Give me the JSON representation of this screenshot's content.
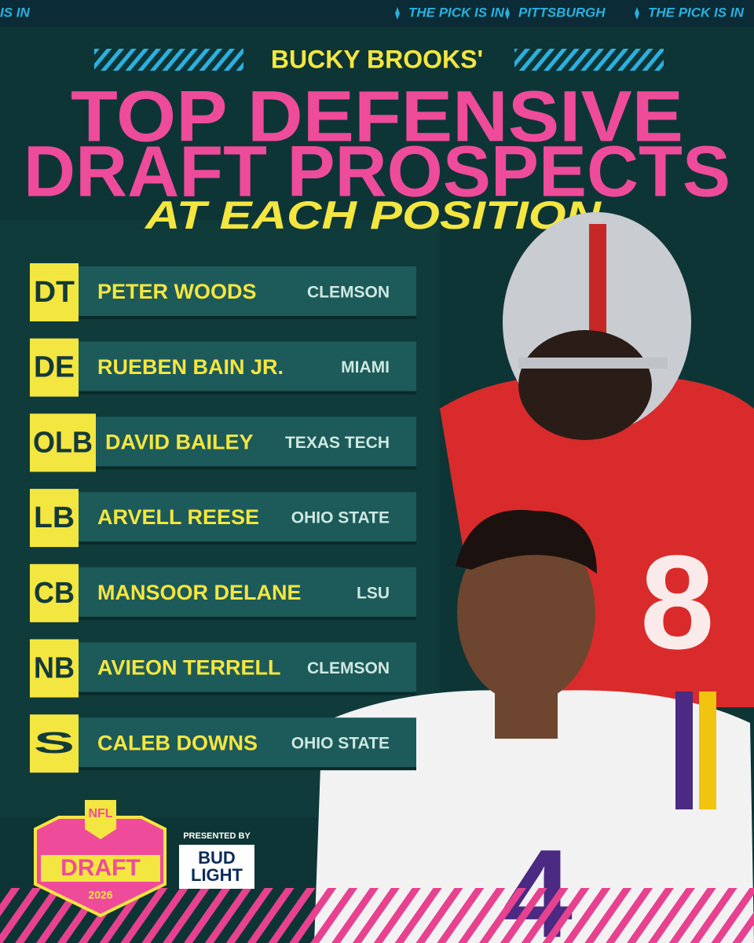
{
  "ticker": [
    "IS IN",
    "THE PICK IS IN",
    "PITTSBURGH",
    "THE PICK IS IN"
  ],
  "header": {
    "author": "BUCKY BROOKS'",
    "title_lines": [
      "TOP DEFENSIVE",
      "DRAFT PROSPECTS"
    ],
    "subtitle": "AT EACH POSITION"
  },
  "prospects": [
    {
      "position": "DT",
      "name": "PETER WOODS",
      "school": "CLEMSON"
    },
    {
      "position": "DE",
      "name": "RUEBEN BAIN JR.",
      "school": "MIAMI"
    },
    {
      "position": "OLB",
      "name": "DAVID BAILEY",
      "school": "TEXAS TECH"
    },
    {
      "position": "LB",
      "name": "ARVELL REESE",
      "school": "OHIO STATE"
    },
    {
      "position": "CB",
      "name": "MANSOOR DELANE",
      "school": "LSU"
    },
    {
      "position": "NB",
      "name": "AVIEON TERRELL",
      "school": "CLEMSON"
    },
    {
      "position": "S",
      "name": "CALEB DOWNS",
      "school": "OHIO STATE"
    }
  ],
  "footer": {
    "logo_nfl": "NFL",
    "logo_draft": "DRAFT",
    "logo_year": "2026",
    "presented_by": "PRESENTED BY",
    "sponsor": "BUD LIGHT"
  }
}
